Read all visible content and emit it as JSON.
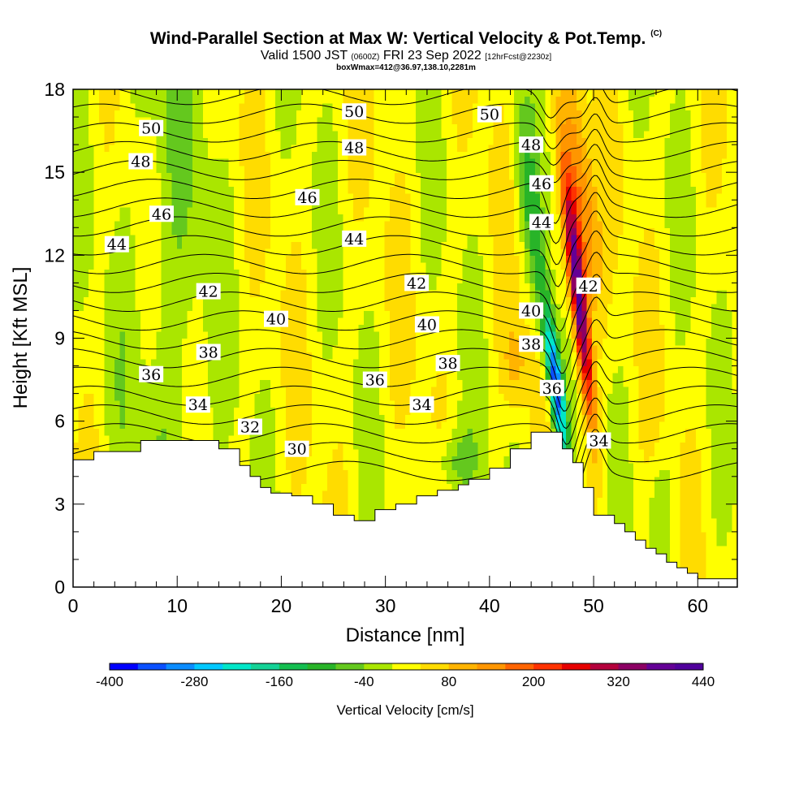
{
  "title": {
    "main": "Wind-Parallel Section at Max W: Vertical Velocity & Pot.Temp.",
    "copyright": "(C)"
  },
  "subtitle": {
    "valid": "Valid 1500 JST",
    "utc": "(0600Z)",
    "date": "FRI 23 Sep 2022",
    "forecast": "[12hrFcst@2230z]",
    "box": "boxWmax=412@36.97,138.10,2281m"
  },
  "chart_data": {
    "type": "heatmap",
    "xlabel": "Distance [nm]",
    "ylabel": "Height [Kft MSL]",
    "xlim": [
      0,
      63.8
    ],
    "ylim": [
      0,
      18
    ],
    "x_ticks": [
      0,
      10,
      20,
      30,
      40,
      50,
      60
    ],
    "y_ticks": [
      0,
      3,
      6,
      9,
      12,
      15,
      18
    ],
    "colorbar": {
      "label": "Vertical Velocity [cm/s]",
      "range": [
        -400,
        440
      ],
      "step": 40,
      "tick_labels": [
        "-400",
        "-280",
        "-160",
        "-40",
        "80",
        "200",
        "320",
        "440"
      ],
      "colors": [
        "#0000ff",
        "#0a50ff",
        "#0a8cff",
        "#00c8ff",
        "#00e6c8",
        "#14d296",
        "#14be50",
        "#28b428",
        "#64c81e",
        "#aae600",
        "#ffff00",
        "#ffdc00",
        "#ffb400",
        "#ff9600",
        "#ff6400",
        "#ff3200",
        "#e60000",
        "#b4003c",
        "#8c0064",
        "#640096",
        "#50009c"
      ]
    },
    "theta_contours": {
      "min": 30,
      "max": 50,
      "interval": 1,
      "labels": [
        {
          "text": "50",
          "x": 7.5,
          "y": 16.6
        },
        {
          "text": "50",
          "x": 27,
          "y": 17.2
        },
        {
          "text": "50",
          "x": 40,
          "y": 17.1
        },
        {
          "text": "48",
          "x": 6.5,
          "y": 15.4
        },
        {
          "text": "48",
          "x": 27,
          "y": 15.9
        },
        {
          "text": "48",
          "x": 44,
          "y": 16.0
        },
        {
          "text": "46",
          "x": 8.5,
          "y": 13.5
        },
        {
          "text": "46",
          "x": 22.5,
          "y": 14.1
        },
        {
          "text": "46",
          "x": 45,
          "y": 14.6
        },
        {
          "text": "44",
          "x": 4.2,
          "y": 12.4
        },
        {
          "text": "44",
          "x": 27,
          "y": 12.6
        },
        {
          "text": "44",
          "x": 45,
          "y": 13.2
        },
        {
          "text": "42",
          "x": 13,
          "y": 10.7
        },
        {
          "text": "42",
          "x": 33,
          "y": 11.0
        },
        {
          "text": "42",
          "x": 49.5,
          "y": 10.9
        },
        {
          "text": "40",
          "x": 19.5,
          "y": 9.7
        },
        {
          "text": "40",
          "x": 34,
          "y": 9.5
        },
        {
          "text": "40",
          "x": 44,
          "y": 10.0
        },
        {
          "text": "38",
          "x": 13,
          "y": 8.5
        },
        {
          "text": "38",
          "x": 36,
          "y": 8.1
        },
        {
          "text": "38",
          "x": 44,
          "y": 8.8
        },
        {
          "text": "36",
          "x": 7.5,
          "y": 7.7
        },
        {
          "text": "36",
          "x": 29,
          "y": 7.5
        },
        {
          "text": "36",
          "x": 46,
          "y": 7.2
        },
        {
          "text": "34",
          "x": 12,
          "y": 6.6
        },
        {
          "text": "34",
          "x": 33.5,
          "y": 6.6
        },
        {
          "text": "34",
          "x": 50.5,
          "y": 5.3
        },
        {
          "text": "32",
          "x": 17,
          "y": 5.8
        },
        {
          "text": "30",
          "x": 21.5,
          "y": 5.0
        }
      ]
    },
    "terrain_kft": {
      "x": [
        0,
        2,
        2,
        6.5,
        6.5,
        14,
        14,
        16,
        16,
        17,
        17,
        18,
        18,
        19,
        19,
        21,
        21,
        23,
        23,
        25,
        25,
        27,
        27,
        29,
        29,
        31,
        31,
        33,
        33,
        35,
        35,
        37,
        37,
        38,
        38,
        40,
        40,
        42,
        42,
        44,
        44,
        47,
        47,
        48,
        48,
        49,
        49,
        50,
        50,
        52,
        52,
        53,
        53,
        54,
        54,
        55,
        55,
        56,
        56,
        57,
        57,
        58,
        58,
        59,
        59,
        60,
        60,
        62,
        62,
        63.8
      ],
      "y": [
        4.6,
        4.6,
        4.9,
        4.9,
        5.3,
        5.3,
        5.0,
        5.0,
        4.4,
        4.4,
        4.0,
        4.0,
        3.6,
        3.6,
        3.4,
        3.4,
        3.3,
        3.3,
        3.0,
        3.0,
        2.6,
        2.6,
        2.4,
        2.4,
        2.8,
        2.8,
        3.0,
        3.0,
        3.3,
        3.3,
        3.5,
        3.5,
        3.7,
        3.7,
        3.9,
        3.9,
        4.3,
        4.3,
        5.0,
        5.0,
        5.6,
        5.6,
        5.0,
        5.0,
        4.5,
        4.5,
        3.6,
        3.6,
        2.6,
        2.6,
        2.3,
        2.3,
        2.0,
        2.0,
        1.7,
        1.7,
        1.4,
        1.4,
        1.2,
        1.2,
        0.9,
        0.9,
        0.7,
        0.7,
        0.5,
        0.5,
        0.3,
        0.3,
        0.3,
        0.3
      ]
    }
  }
}
